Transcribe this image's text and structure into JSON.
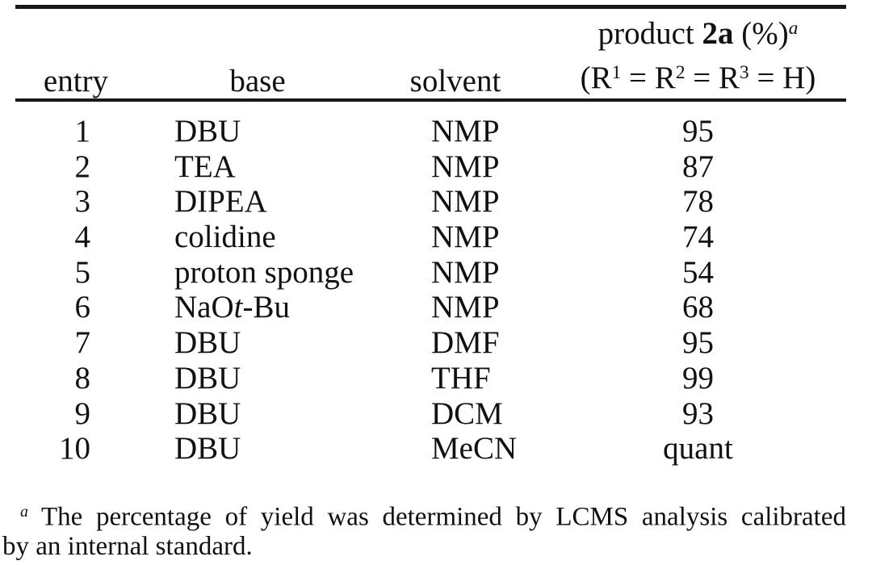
{
  "table": {
    "header": {
      "entry": "entry",
      "base": "base",
      "solvent": "solvent",
      "product_line1": [
        {
          "t": "product "
        },
        {
          "t": "2a",
          "b": true
        },
        {
          "t": " (%)"
        },
        {
          "t": "a",
          "sup": true,
          "i": true
        }
      ],
      "product_line2": [
        {
          "t": "(R"
        },
        {
          "t": "1",
          "sup": true
        },
        {
          "t": " = R"
        },
        {
          "t": "2",
          "sup": true
        },
        {
          "t": " = R"
        },
        {
          "t": "3",
          "sup": true
        },
        {
          "t": " = H)"
        }
      ]
    },
    "rows": [
      {
        "entry": "1",
        "base": [
          {
            "t": "DBU"
          }
        ],
        "solvent": "NMP",
        "yield": "95"
      },
      {
        "entry": "2",
        "base": [
          {
            "t": "TEA"
          }
        ],
        "solvent": "NMP",
        "yield": "87"
      },
      {
        "entry": "3",
        "base": [
          {
            "t": "DIPEA"
          }
        ],
        "solvent": "NMP",
        "yield": "78"
      },
      {
        "entry": "4",
        "base": [
          {
            "t": "colidine"
          }
        ],
        "solvent": "NMP",
        "yield": "74"
      },
      {
        "entry": "5",
        "base": [
          {
            "t": "proton sponge"
          }
        ],
        "solvent": "NMP",
        "yield": "54"
      },
      {
        "entry": "6",
        "base": [
          {
            "t": "NaO"
          },
          {
            "t": "t",
            "i": true
          },
          {
            "t": "-Bu"
          }
        ],
        "solvent": "NMP",
        "yield": "68"
      },
      {
        "entry": "7",
        "base": [
          {
            "t": "DBU"
          }
        ],
        "solvent": "DMF",
        "yield": "95"
      },
      {
        "entry": "8",
        "base": [
          {
            "t": "DBU"
          }
        ],
        "solvent": "THF",
        "yield": "99"
      },
      {
        "entry": "9",
        "base": [
          {
            "t": "DBU"
          }
        ],
        "solvent": "DCM",
        "yield": "93"
      },
      {
        "entry": "10",
        "base": [
          {
            "t": "DBU"
          }
        ],
        "solvent": "MeCN",
        "yield": "quant"
      }
    ]
  },
  "footnote": {
    "line1": [
      {
        "t": "a",
        "sup": true,
        "i": true
      },
      {
        "t": " The percentage of yield was determined by LCMS analysis calibrated"
      }
    ],
    "line2": [
      {
        "t": "by an internal standard."
      }
    ]
  },
  "colors": {
    "text": "#111111",
    "rule": "#181818",
    "background": "#ffffff"
  }
}
